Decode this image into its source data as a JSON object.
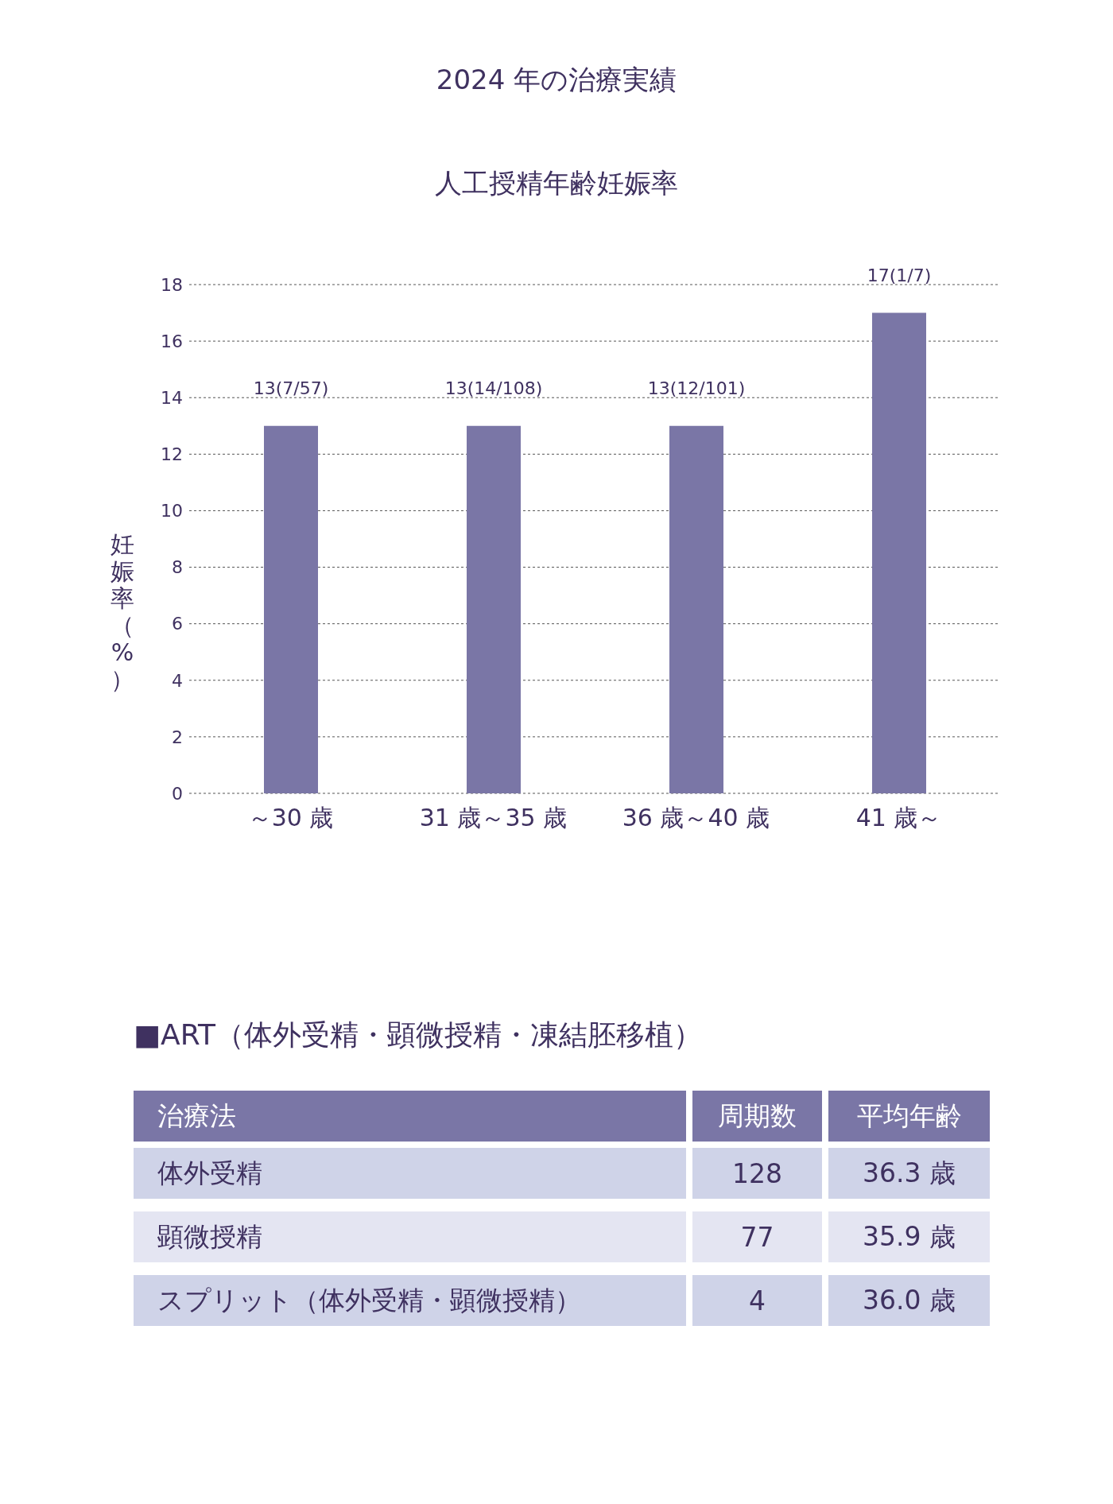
{
  "chart_data": [
    {
      "type": "bar",
      "title": "2024 年の治療実績",
      "subtitle": "人工授精年齢妊娠率",
      "ylabel": "妊娠率（%）",
      "categories": [
        "～30 歳",
        "31 歳～35 歳",
        "36 歳～40 歳",
        "41 歳～"
      ],
      "values": [
        13,
        13,
        13,
        17
      ],
      "value_labels": [
        "13(7/57)",
        "13(14/108)",
        "13(12/101)",
        "17(1/7)"
      ],
      "color": "#7a76a6",
      "ylim": [
        0,
        18
      ],
      "yticks": [
        0,
        2,
        4,
        6,
        8,
        10,
        12,
        14,
        16,
        18
      ],
      "grid": "y"
    },
    {
      "type": "other",
      "title": "■ART（体外受精・顕微授精・凍結胚移植）",
      "annotations": [
        "治療法",
        "周期数",
        "平均年齢",
        "体外受精",
        "128",
        "36.3 歳",
        "顕微授精",
        "77",
        "35.9 歳",
        "スプリット（体外受精・顕微授精）",
        "4",
        "36.0 歳"
      ]
    }
  ]
}
